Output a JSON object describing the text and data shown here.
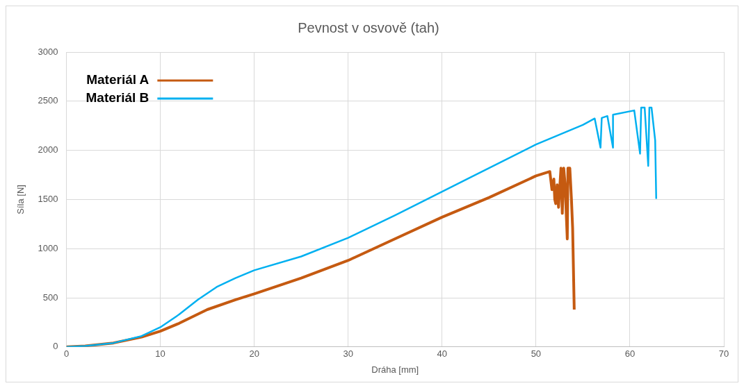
{
  "chart_data": {
    "type": "line",
    "title": "Pevnost v osvově (tah)",
    "xlabel": "Dráha [mm]",
    "ylabel": "Síla [N]",
    "xlim": [
      0,
      70
    ],
    "xticks": [
      0,
      10,
      20,
      30,
      40,
      50,
      60,
      70
    ],
    "ylim": [
      0,
      3000
    ],
    "yticks": [
      0,
      500,
      1000,
      1500,
      2000,
      2500,
      3000
    ],
    "grid": true,
    "legend": "top left",
    "marker": "none",
    "line_style": "solid",
    "series": [
      {
        "name": "Materiál A",
        "color": "#c55a11",
        "x": [
          0,
          2,
          5,
          8,
          10,
          12,
          15,
          18,
          20,
          25,
          30,
          35,
          40,
          45,
          50,
          51.47,
          51.7,
          51.9,
          52.0,
          52.1,
          52.25,
          52.4,
          52.66,
          52.8,
          52.95,
          53.1,
          53.33,
          53.4,
          53.6,
          53.77,
          53.9,
          54.07
        ],
        "values": [
          0,
          10,
          40,
          100,
          160,
          240,
          380,
          480,
          540,
          700,
          880,
          1100,
          1320,
          1520,
          1740,
          1784,
          1600,
          1708,
          1500,
          1458,
          1650,
          1420,
          1819,
          1359,
          1819,
          1650,
          1099,
          1819,
          1819,
          1507,
          1210,
          380
        ]
      },
      {
        "name": "Materiál B",
        "color": "#00b0f0",
        "x": [
          0,
          2,
          5,
          8,
          10,
          12,
          14,
          16,
          18,
          20,
          25,
          30,
          35,
          40,
          45,
          50,
          55,
          56.25,
          56.87,
          57.0,
          57.6,
          58.2,
          58.2,
          60.46,
          61.08,
          61.2,
          61.57,
          61.95,
          62.07,
          62.3,
          62.69,
          62.8
        ],
        "values": [
          0,
          10,
          40,
          110,
          200,
          330,
          480,
          610,
          700,
          780,
          920,
          1110,
          1340,
          1580,
          1820,
          2060,
          2260,
          2324,
          2027,
          2330,
          2349,
          2027,
          2362,
          2406,
          1966,
          2435,
          2435,
          1842,
          2435,
          2435,
          2101,
          1507
        ]
      }
    ]
  }
}
